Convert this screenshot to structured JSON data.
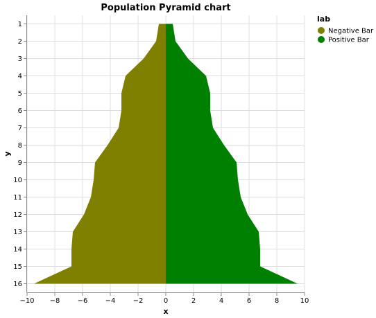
{
  "chart_data": {
    "type": "area",
    "orientation": "horizontal",
    "title": "Population Pyramid chart",
    "xlabel": "x",
    "ylabel": "y",
    "xlim": [
      -10,
      10
    ],
    "xticks": [
      -10,
      -8,
      -6,
      -4,
      -2,
      0,
      2,
      4,
      6,
      8,
      10
    ],
    "categories": [
      1,
      2,
      3,
      4,
      5,
      6,
      7,
      8,
      9,
      10,
      11,
      12,
      13,
      14,
      15,
      16
    ],
    "grid": true,
    "legend": {
      "title": "lab",
      "placement": "top-right"
    },
    "series": [
      {
        "name": "Negative Bar",
        "color": "#808000",
        "values": [
          -0.5,
          -0.7,
          -1.6,
          -2.9,
          -3.2,
          -3.2,
          -3.4,
          -4.2,
          -5.1,
          -5.2,
          -5.4,
          -5.9,
          -6.7,
          -6.8,
          -6.8,
          -9.5
        ]
      },
      {
        "name": "Positive Bar",
        "color": "#008000",
        "values": [
          0.5,
          0.7,
          1.6,
          2.9,
          3.2,
          3.2,
          3.4,
          4.2,
          5.1,
          5.2,
          5.4,
          5.9,
          6.7,
          6.8,
          6.8,
          9.5
        ]
      }
    ]
  }
}
